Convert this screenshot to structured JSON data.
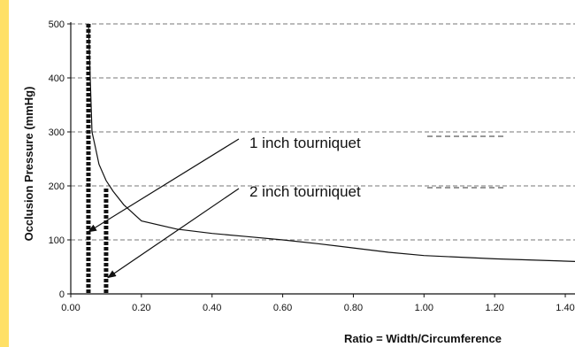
{
  "colors": {
    "frame_accent": "#ffe066",
    "axis": "#111111",
    "grid": "#777777",
    "series": "#111111"
  },
  "chart_data": {
    "type": "line",
    "title": "",
    "xlabel": "Ratio = Width/Circumference",
    "ylabel": "Occlusion Pressure (mmHg)",
    "xlim": [
      0,
      1.43
    ],
    "ylim": [
      0,
      500
    ],
    "x_ticks": [
      "0.00",
      "0.20",
      "0.40",
      "0.60",
      "0.80",
      "1.00",
      "1.20",
      "1.40"
    ],
    "y_ticks": [
      "0",
      "100",
      "200",
      "300",
      "400",
      "500"
    ],
    "y_grid": [
      100,
      200,
      300,
      400,
      500
    ],
    "grid": true,
    "series": [
      {
        "style": "solid",
        "points": [
          [
            0.05,
            500
          ],
          [
            0.06,
            300
          ],
          [
            0.07,
            270
          ],
          [
            0.08,
            240
          ],
          [
            0.1,
            210
          ],
          [
            0.12,
            190
          ],
          [
            0.15,
            165
          ],
          [
            0.2,
            135
          ],
          [
            0.3,
            120
          ],
          [
            0.4,
            112
          ],
          [
            0.5,
            106
          ],
          [
            0.6,
            100
          ],
          [
            0.7,
            93
          ],
          [
            0.8,
            85
          ],
          [
            0.9,
            77
          ],
          [
            1.0,
            71
          ],
          [
            1.2,
            65
          ],
          [
            1.43,
            60
          ]
        ]
      }
    ],
    "markers": [
      {
        "x": 0.05,
        "y_top": 500,
        "style": "dotted-bar"
      },
      {
        "x": 0.1,
        "y_top": 195,
        "style": "dotted-bar"
      }
    ],
    "annotations": [
      {
        "label": "1 inch tourniquet",
        "points_to": [
          0.05,
          115
        ]
      },
      {
        "label": "2 inch tourniquet",
        "points_to": [
          0.105,
          30
        ]
      }
    ]
  }
}
